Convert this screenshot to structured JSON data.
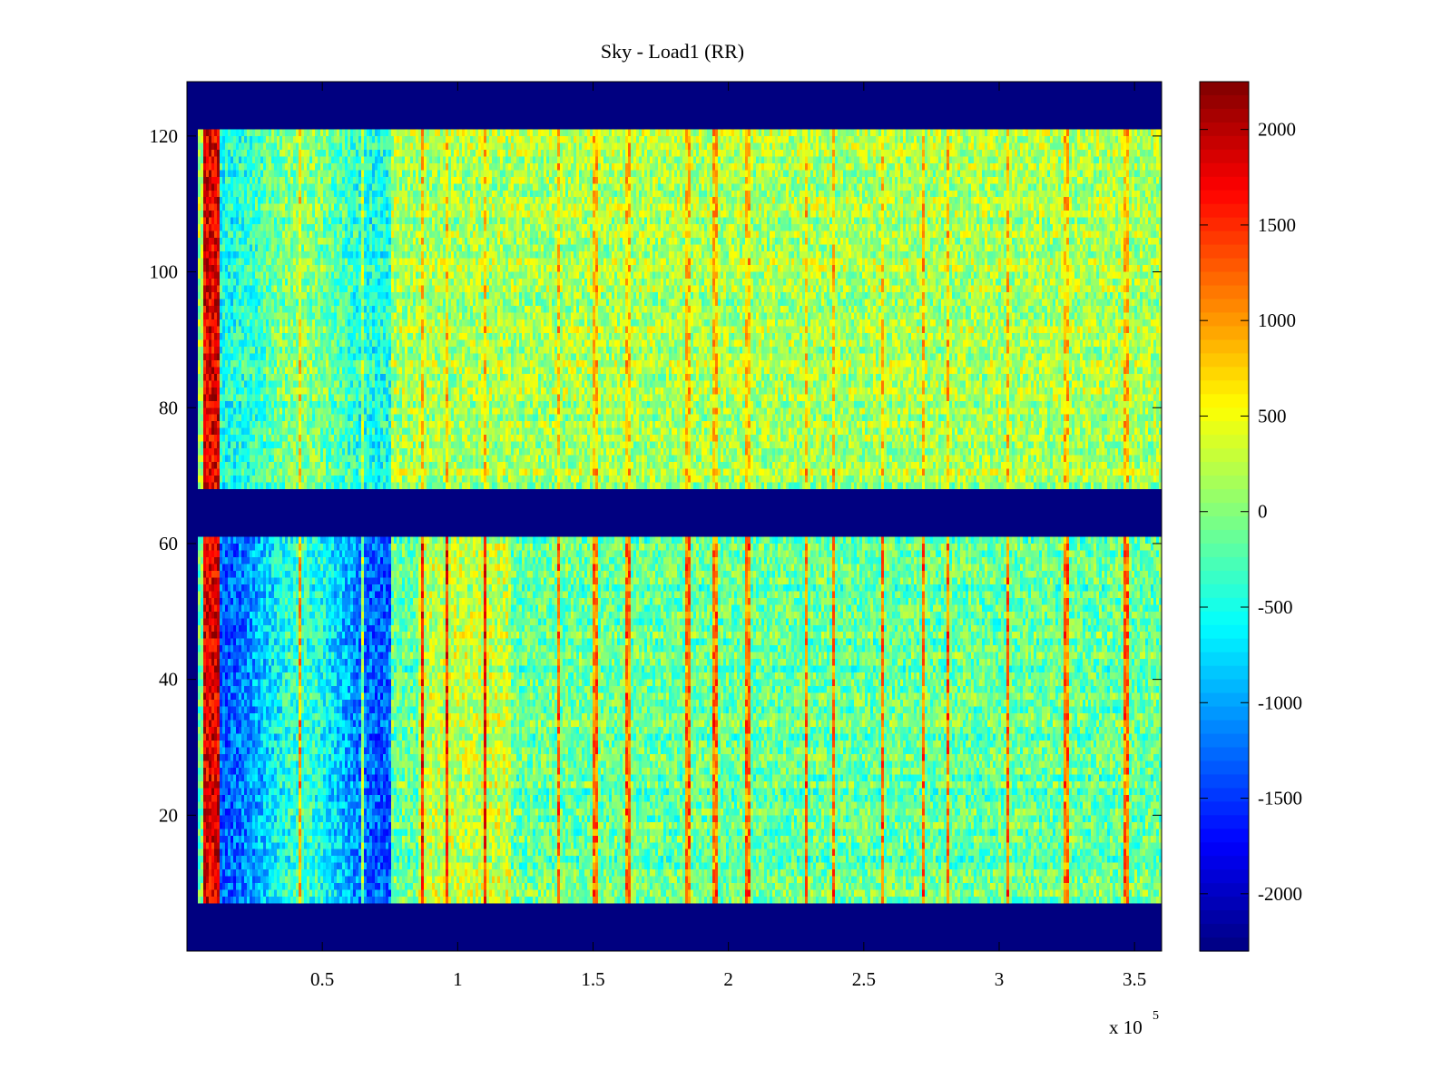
{
  "chart_data": {
    "type": "heatmap",
    "title": "Sky - Load1 (RR)",
    "xlabel": "",
    "ylabel": "",
    "xlim": [
      0,
      360000
    ],
    "ylim": [
      0,
      128
    ],
    "x_ticks": [
      50000,
      100000,
      150000,
      200000,
      250000,
      300000,
      350000
    ],
    "x_tick_labels": [
      "0.5",
      "1",
      "1.5",
      "2",
      "2.5",
      "3",
      "3.5"
    ],
    "x_exponent_label": "x 10",
    "x_exponent_power": "5",
    "y_ticks": [
      20,
      40,
      60,
      80,
      100,
      120
    ],
    "y_tick_labels": [
      "20",
      "40",
      "60",
      "80",
      "100",
      "120"
    ],
    "colorbar": {
      "colormap": "jet",
      "clim": [
        -2300,
        2250
      ],
      "ticks": [
        2000,
        1500,
        1000,
        500,
        0,
        -500,
        -1000,
        -1500,
        -2000
      ],
      "tick_labels": [
        "2000",
        "1500",
        "1000",
        "500",
        "0",
        "-500",
        "-1000",
        "-1500",
        "-2000"
      ]
    },
    "masked_row_bands": [
      [
        0,
        7
      ],
      [
        61,
        68
      ],
      [
        121,
        128
      ]
    ],
    "valid_row_bands": [
      [
        7,
        61
      ],
      [
        68,
        121
      ]
    ],
    "upper_band_baseline_value": 150,
    "lower_band_baseline_value": -150,
    "early_depressed_region_x": [
      10000,
      75000
    ],
    "early_depressed_value": -1300,
    "hot_column_x": 9000,
    "hot_column_value": 1800,
    "warm_region_x": [
      85000,
      120000
    ],
    "warm_region_value": 400,
    "spike_columns_x": [
      42000,
      65000,
      87000,
      96000,
      110000,
      137000,
      151000,
      163000,
      185000,
      195000,
      207000,
      229000,
      239000,
      257000,
      272000,
      281000,
      303000,
      325000,
      347000
    ]
  }
}
